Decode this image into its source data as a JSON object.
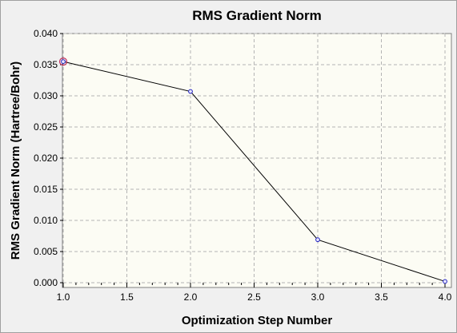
{
  "chart_data": {
    "type": "line",
    "title": "RMS Gradient Norm",
    "xlabel": "Optimization Step Number",
    "ylabel": "RMS Gradient Norm (Hartree/Bohr)",
    "xlim": [
      1.0,
      4.0
    ],
    "ylim": [
      0.0,
      0.04
    ],
    "x_ticks": [
      "1.0",
      "1.5",
      "2.0",
      "2.5",
      "3.0",
      "3.5",
      "4.0"
    ],
    "y_ticks": [
      "0.000",
      "0.005",
      "0.010",
      "0.015",
      "0.020",
      "0.025",
      "0.030",
      "0.035",
      "0.040"
    ],
    "grid": true,
    "series": [
      {
        "x": [
          1,
          2,
          3,
          4
        ],
        "values": [
          0.0355,
          0.0307,
          0.0069,
          0.0002
        ]
      }
    ],
    "highlighted_point_index": 0,
    "colors": {
      "plot_background": "#fcfcf4",
      "line": "#000000",
      "marker": "#2020c0",
      "highlight": "#c03060",
      "grid": "#b4b4b4"
    }
  }
}
